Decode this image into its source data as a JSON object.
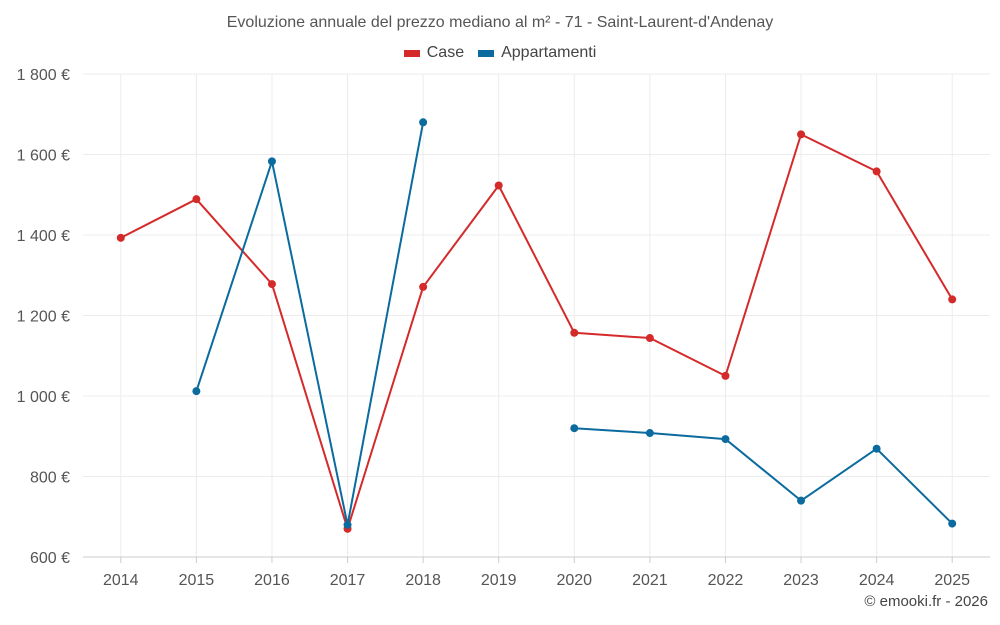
{
  "chart_data": {
    "type": "line",
    "title": "Evoluzione annuale del prezzo mediano al m² - 71 - Saint-Laurent-d'Andenay",
    "categories": [
      "2014",
      "2015",
      "2016",
      "2017",
      "2018",
      "2019",
      "2020",
      "2021",
      "2022",
      "2023",
      "2024",
      "2025"
    ],
    "ylim": [
      600,
      1800
    ],
    "yticks": [
      600,
      800,
      1000,
      1200,
      1400,
      1600,
      1800
    ],
    "ytick_labels": [
      "600 €",
      "800 €",
      "1 000 €",
      "1 200 €",
      "1 400 €",
      "1 600 €",
      "1 800 €"
    ],
    "grid": true,
    "legend_position": "top-center",
    "series": [
      {
        "name": "Case",
        "color": "#d42a2a",
        "values": [
          1393,
          1489,
          1278,
          670,
          1271,
          1523,
          1157,
          1144,
          1050,
          1650,
          1558,
          1240
        ]
      },
      {
        "name": "Appartamenti",
        "color": "#0b6a9e",
        "values": [
          null,
          1012,
          1583,
          680,
          1680,
          null,
          920,
          908,
          893,
          740,
          869,
          683
        ]
      }
    ]
  },
  "credit": "© emooki.fr - 2026"
}
